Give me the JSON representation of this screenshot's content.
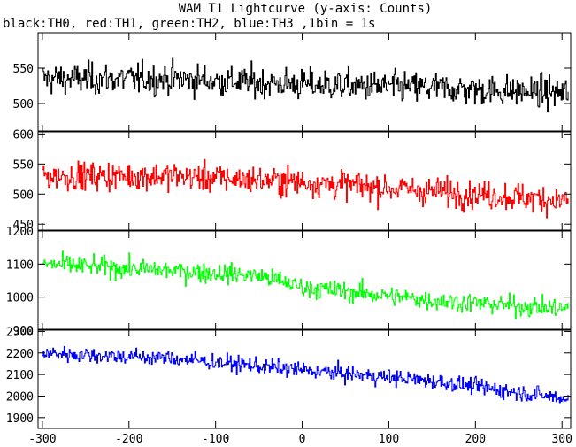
{
  "chart_data": {
    "type": "line",
    "title": "WAM T1 Lightcurve (y-axis: Counts)",
    "subtitle": "black:TH0, red:TH1, green:TH2, blue:TH3 ,1bin = 1s",
    "xlabel": "",
    "ylabel": "",
    "xlim": [
      -305,
      310
    ],
    "x_ticks": [
      -300,
      -200,
      -100,
      0,
      100,
      200,
      300
    ],
    "grid": false,
    "panels": [
      {
        "name": "TH0",
        "color": "#000000",
        "ylim": [
          460,
          600
        ],
        "y_ticks": [
          500,
          550
        ],
        "trend": {
          "x": [
            -300,
            -150,
            0,
            150,
            300
          ],
          "y": [
            535,
            535,
            527,
            522,
            515
          ]
        },
        "noise": 28
      },
      {
        "name": "TH1",
        "color": "#ff0000",
        "ylim": [
          440,
          605
        ],
        "y_ticks": [
          450,
          500,
          550,
          600
        ],
        "trend": {
          "x": [
            -300,
            -150,
            0,
            150,
            300
          ],
          "y": [
            530,
            530,
            520,
            505,
            490
          ]
        },
        "noise": 30
      },
      {
        "name": "TH2",
        "color": "#00ff00",
        "ylim": [
          900,
          1200
        ],
        "y_ticks": [
          900,
          1000,
          1100,
          1200
        ],
        "trend": {
          "x": [
            -300,
            -150,
            -50,
            0,
            150,
            300
          ],
          "y": [
            1100,
            1080,
            1065,
            1030,
            990,
            965
          ]
        },
        "noise": 38
      },
      {
        "name": "TH3",
        "color": "#0000ff",
        "ylim": [
          1850,
          2310
        ],
        "y_ticks": [
          1900,
          2000,
          2100,
          2200,
          2300
        ],
        "trend": {
          "x": [
            -300,
            -150,
            0,
            150,
            300
          ],
          "y": [
            2200,
            2175,
            2120,
            2070,
            1990
          ]
        },
        "noise": 48
      }
    ]
  }
}
